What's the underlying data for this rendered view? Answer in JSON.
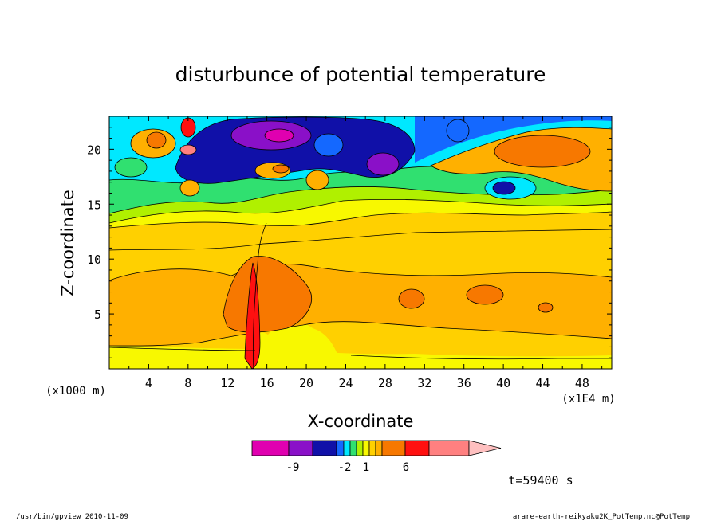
{
  "chart_data": {
    "type": "heatmap",
    "title": "disturbunce of potential temperature",
    "xlabel": "X-coordinate",
    "ylabel": "Z-coordinate",
    "x_unit_left": "(x1000 m)",
    "x_unit_right": "(x1E4 m)",
    "x_ticks": [
      "4",
      "8",
      "12",
      "16",
      "20",
      "24",
      "28",
      "32",
      "36",
      "40",
      "44",
      "48"
    ],
    "y_ticks": [
      "5",
      "10",
      "15",
      "20"
    ],
    "xlim": [
      0,
      51
    ],
    "ylim": [
      0,
      23
    ],
    "colorbar_labels": [
      "-9",
      "-2",
      "1",
      "6"
    ],
    "colorbar_colors": [
      "#e000b0",
      "#8a10c8",
      "#1010a8",
      "#1468ff",
      "#00e8ff",
      "#30e070",
      "#b0f000",
      "#f8f800",
      "#ffd000",
      "#ffb000",
      "#f77800",
      "#ff1010",
      "#ff8080",
      "#ffc0c0"
    ],
    "time_label": "t=59400 s",
    "grid": false,
    "legend": "colorbar-bottom"
  },
  "footer": {
    "left": "/usr/bin/gpview   2010-11-09",
    "right": "arare-earth-reikyaku2K_PotTemp.nc@PotTemp"
  }
}
